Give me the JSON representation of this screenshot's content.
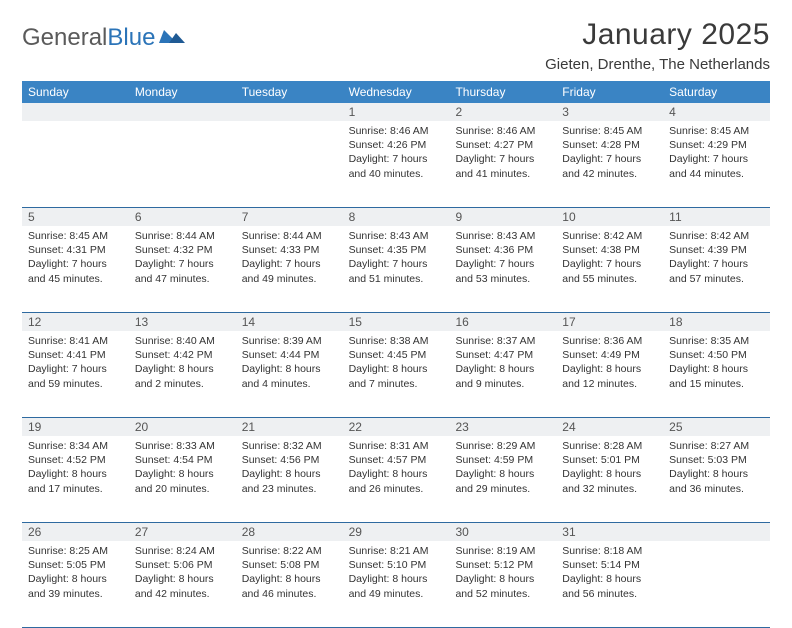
{
  "logo": {
    "text_gray": "General",
    "text_blue": "Blue"
  },
  "title": "January 2025",
  "location": "Gieten, Drenthe, The Netherlands",
  "colors": {
    "header_bg": "#3a84c4",
    "header_text": "#ffffff",
    "daynum_bg": "#eef0f2",
    "rule": "#2e6aa0",
    "body_text": "#333333",
    "logo_gray": "#5a5a5a",
    "logo_blue": "#2b74b8"
  },
  "day_headers": [
    "Sunday",
    "Monday",
    "Tuesday",
    "Wednesday",
    "Thursday",
    "Friday",
    "Saturday"
  ],
  "weeks": [
    {
      "nums": [
        "",
        "",
        "",
        "1",
        "2",
        "3",
        "4"
      ],
      "cells": [
        null,
        null,
        null,
        {
          "sunrise": "Sunrise: 8:46 AM",
          "sunset": "Sunset: 4:26 PM",
          "day1": "Daylight: 7 hours",
          "day2": "and 40 minutes."
        },
        {
          "sunrise": "Sunrise: 8:46 AM",
          "sunset": "Sunset: 4:27 PM",
          "day1": "Daylight: 7 hours",
          "day2": "and 41 minutes."
        },
        {
          "sunrise": "Sunrise: 8:45 AM",
          "sunset": "Sunset: 4:28 PM",
          "day1": "Daylight: 7 hours",
          "day2": "and 42 minutes."
        },
        {
          "sunrise": "Sunrise: 8:45 AM",
          "sunset": "Sunset: 4:29 PM",
          "day1": "Daylight: 7 hours",
          "day2": "and 44 minutes."
        }
      ]
    },
    {
      "nums": [
        "5",
        "6",
        "7",
        "8",
        "9",
        "10",
        "11"
      ],
      "cells": [
        {
          "sunrise": "Sunrise: 8:45 AM",
          "sunset": "Sunset: 4:31 PM",
          "day1": "Daylight: 7 hours",
          "day2": "and 45 minutes."
        },
        {
          "sunrise": "Sunrise: 8:44 AM",
          "sunset": "Sunset: 4:32 PM",
          "day1": "Daylight: 7 hours",
          "day2": "and 47 minutes."
        },
        {
          "sunrise": "Sunrise: 8:44 AM",
          "sunset": "Sunset: 4:33 PM",
          "day1": "Daylight: 7 hours",
          "day2": "and 49 minutes."
        },
        {
          "sunrise": "Sunrise: 8:43 AM",
          "sunset": "Sunset: 4:35 PM",
          "day1": "Daylight: 7 hours",
          "day2": "and 51 minutes."
        },
        {
          "sunrise": "Sunrise: 8:43 AM",
          "sunset": "Sunset: 4:36 PM",
          "day1": "Daylight: 7 hours",
          "day2": "and 53 minutes."
        },
        {
          "sunrise": "Sunrise: 8:42 AM",
          "sunset": "Sunset: 4:38 PM",
          "day1": "Daylight: 7 hours",
          "day2": "and 55 minutes."
        },
        {
          "sunrise": "Sunrise: 8:42 AM",
          "sunset": "Sunset: 4:39 PM",
          "day1": "Daylight: 7 hours",
          "day2": "and 57 minutes."
        }
      ]
    },
    {
      "nums": [
        "12",
        "13",
        "14",
        "15",
        "16",
        "17",
        "18"
      ],
      "cells": [
        {
          "sunrise": "Sunrise: 8:41 AM",
          "sunset": "Sunset: 4:41 PM",
          "day1": "Daylight: 7 hours",
          "day2": "and 59 minutes."
        },
        {
          "sunrise": "Sunrise: 8:40 AM",
          "sunset": "Sunset: 4:42 PM",
          "day1": "Daylight: 8 hours",
          "day2": "and 2 minutes."
        },
        {
          "sunrise": "Sunrise: 8:39 AM",
          "sunset": "Sunset: 4:44 PM",
          "day1": "Daylight: 8 hours",
          "day2": "and 4 minutes."
        },
        {
          "sunrise": "Sunrise: 8:38 AM",
          "sunset": "Sunset: 4:45 PM",
          "day1": "Daylight: 8 hours",
          "day2": "and 7 minutes."
        },
        {
          "sunrise": "Sunrise: 8:37 AM",
          "sunset": "Sunset: 4:47 PM",
          "day1": "Daylight: 8 hours",
          "day2": "and 9 minutes."
        },
        {
          "sunrise": "Sunrise: 8:36 AM",
          "sunset": "Sunset: 4:49 PM",
          "day1": "Daylight: 8 hours",
          "day2": "and 12 minutes."
        },
        {
          "sunrise": "Sunrise: 8:35 AM",
          "sunset": "Sunset: 4:50 PM",
          "day1": "Daylight: 8 hours",
          "day2": "and 15 minutes."
        }
      ]
    },
    {
      "nums": [
        "19",
        "20",
        "21",
        "22",
        "23",
        "24",
        "25"
      ],
      "cells": [
        {
          "sunrise": "Sunrise: 8:34 AM",
          "sunset": "Sunset: 4:52 PM",
          "day1": "Daylight: 8 hours",
          "day2": "and 17 minutes."
        },
        {
          "sunrise": "Sunrise: 8:33 AM",
          "sunset": "Sunset: 4:54 PM",
          "day1": "Daylight: 8 hours",
          "day2": "and 20 minutes."
        },
        {
          "sunrise": "Sunrise: 8:32 AM",
          "sunset": "Sunset: 4:56 PM",
          "day1": "Daylight: 8 hours",
          "day2": "and 23 minutes."
        },
        {
          "sunrise": "Sunrise: 8:31 AM",
          "sunset": "Sunset: 4:57 PM",
          "day1": "Daylight: 8 hours",
          "day2": "and 26 minutes."
        },
        {
          "sunrise": "Sunrise: 8:29 AM",
          "sunset": "Sunset: 4:59 PM",
          "day1": "Daylight: 8 hours",
          "day2": "and 29 minutes."
        },
        {
          "sunrise": "Sunrise: 8:28 AM",
          "sunset": "Sunset: 5:01 PM",
          "day1": "Daylight: 8 hours",
          "day2": "and 32 minutes."
        },
        {
          "sunrise": "Sunrise: 8:27 AM",
          "sunset": "Sunset: 5:03 PM",
          "day1": "Daylight: 8 hours",
          "day2": "and 36 minutes."
        }
      ]
    },
    {
      "nums": [
        "26",
        "27",
        "28",
        "29",
        "30",
        "31",
        ""
      ],
      "cells": [
        {
          "sunrise": "Sunrise: 8:25 AM",
          "sunset": "Sunset: 5:05 PM",
          "day1": "Daylight: 8 hours",
          "day2": "and 39 minutes."
        },
        {
          "sunrise": "Sunrise: 8:24 AM",
          "sunset": "Sunset: 5:06 PM",
          "day1": "Daylight: 8 hours",
          "day2": "and 42 minutes."
        },
        {
          "sunrise": "Sunrise: 8:22 AM",
          "sunset": "Sunset: 5:08 PM",
          "day1": "Daylight: 8 hours",
          "day2": "and 46 minutes."
        },
        {
          "sunrise": "Sunrise: 8:21 AM",
          "sunset": "Sunset: 5:10 PM",
          "day1": "Daylight: 8 hours",
          "day2": "and 49 minutes."
        },
        {
          "sunrise": "Sunrise: 8:19 AM",
          "sunset": "Sunset: 5:12 PM",
          "day1": "Daylight: 8 hours",
          "day2": "and 52 minutes."
        },
        {
          "sunrise": "Sunrise: 8:18 AM",
          "sunset": "Sunset: 5:14 PM",
          "day1": "Daylight: 8 hours",
          "day2": "and 56 minutes."
        },
        null
      ]
    }
  ]
}
